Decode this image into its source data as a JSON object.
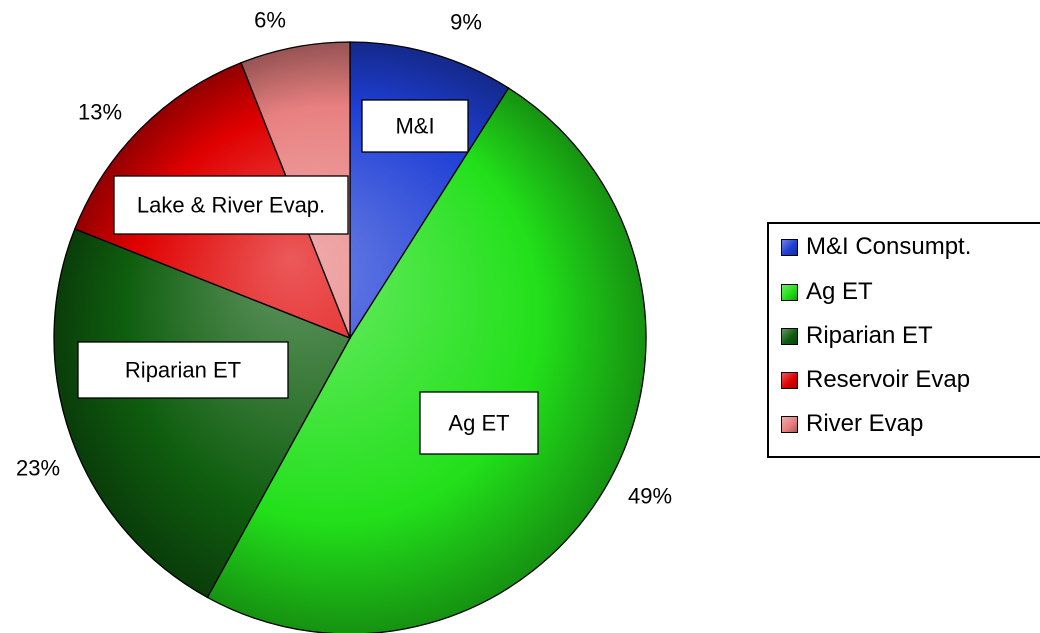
{
  "chart_data": {
    "type": "pie",
    "title": "",
    "start_angle_deg": 0,
    "direction": "clockwise",
    "slices": [
      {
        "legend": "M&I Consumpt.",
        "callout": "M&I",
        "percent_label": "9%",
        "value": 9,
        "color": "#1f3fd6"
      },
      {
        "legend": "Ag ET",
        "callout": "Ag ET",
        "percent_label": "49%",
        "value": 49,
        "color": "#22e01a"
      },
      {
        "legend": "Riparian ET",
        "callout": "Riparian ET",
        "percent_label": "23%",
        "value": 23,
        "color": "#0f5e0f"
      },
      {
        "legend": "Reservoir Evap",
        "callout": "Lake & River Evap.",
        "percent_label": "13%",
        "value": 13,
        "color": "#e00000"
      },
      {
        "legend": "River Evap",
        "callout": "",
        "percent_label": "6%",
        "value": 6,
        "color": "#e88080"
      }
    ],
    "legend_position": "right"
  }
}
